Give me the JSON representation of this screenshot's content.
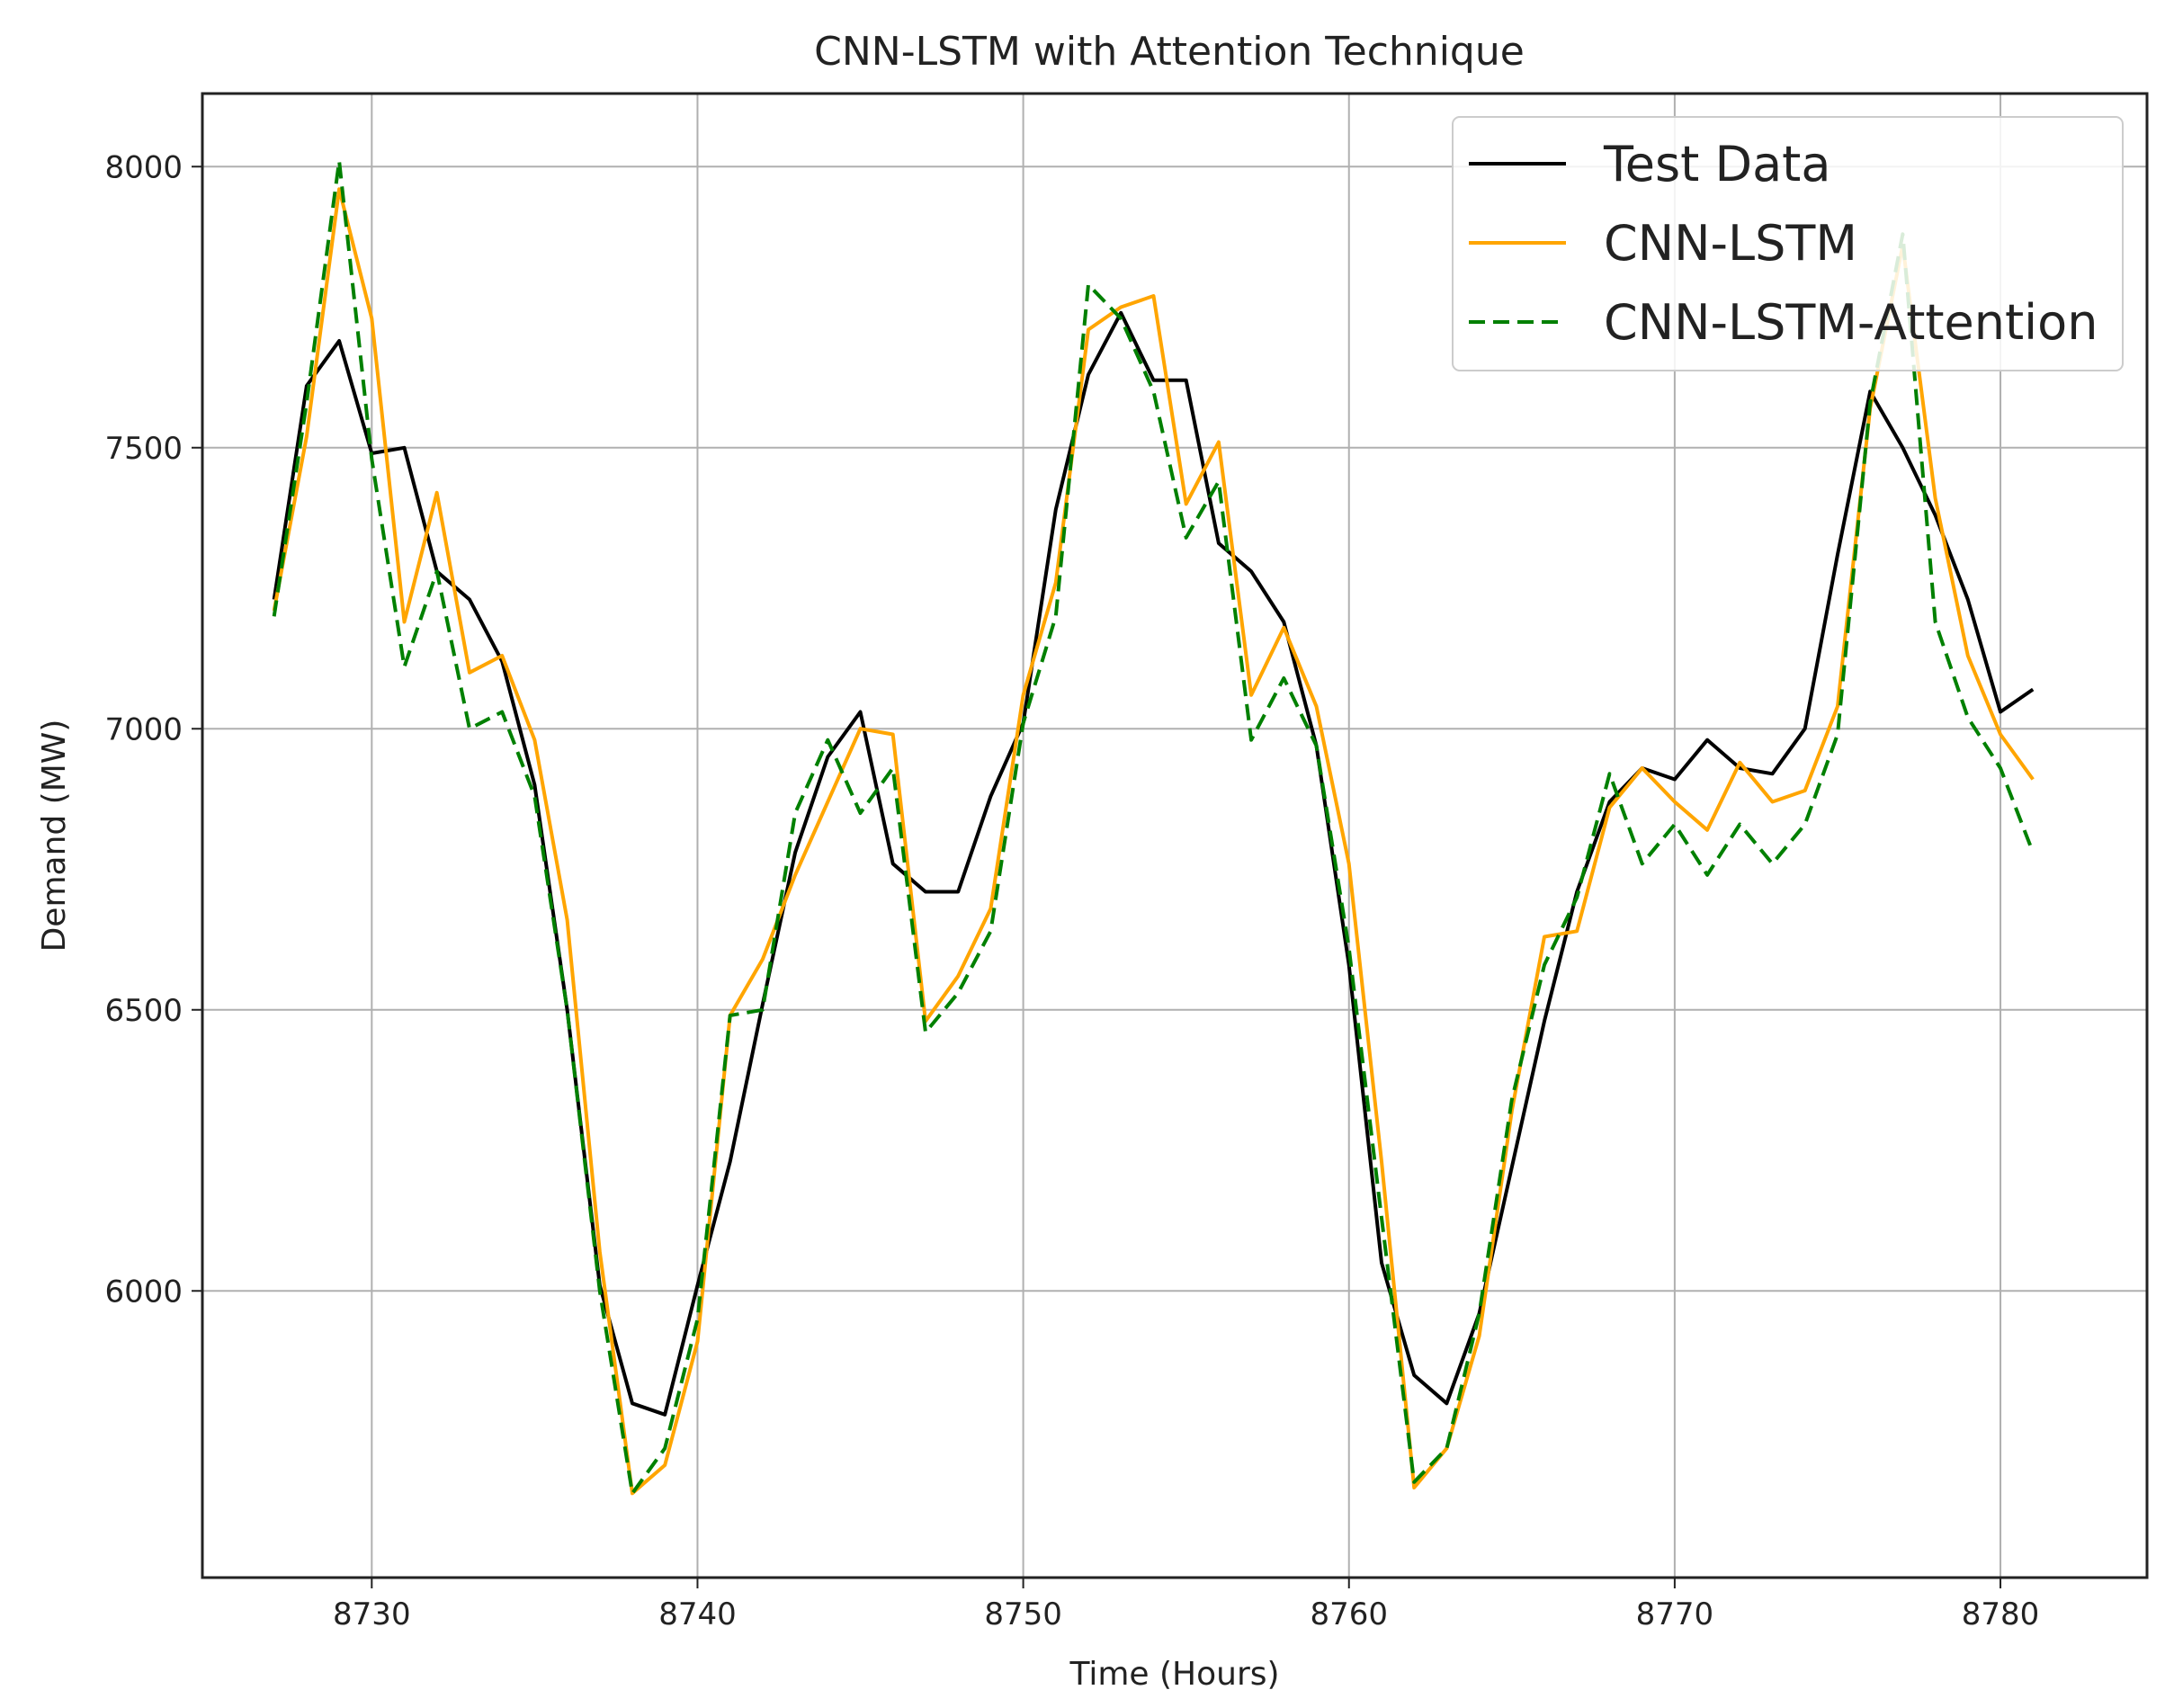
{
  "chart_data": {
    "type": "line",
    "title": "CNN-LSTM with Attention Technique",
    "xlabel": "Time (Hours)",
    "ylabel": "Demand (MW)",
    "xlim": [
      8724.8,
      8784.5
    ],
    "ylim": [
      5490,
      8130
    ],
    "xticks": [
      8730,
      8740,
      8750,
      8760,
      8770,
      8780
    ],
    "yticks": [
      6000,
      6500,
      7000,
      7500,
      8000
    ],
    "grid": true,
    "legend_position": "top-right",
    "x": [
      8727,
      8728,
      8729,
      8730,
      8731,
      8732,
      8733,
      8734,
      8735,
      8736,
      8737,
      8738,
      8739,
      8740,
      8741,
      8742,
      8743,
      8744,
      8745,
      8746,
      8747,
      8748,
      8749,
      8750,
      8751,
      8752,
      8753,
      8754,
      8755,
      8756,
      8757,
      8758,
      8759,
      8760,
      8761,
      8762,
      8763,
      8764,
      8765,
      8766,
      8767,
      8768,
      8769,
      8770,
      8771,
      8772,
      8773,
      8774,
      8775,
      8776,
      8777,
      8778,
      8779,
      8780,
      8781
    ],
    "series": [
      {
        "name": "Test Data",
        "color": "#000000",
        "dash": "solid",
        "values": [
          7230,
          7610,
          7690,
          7490,
          7500,
          7280,
          7230,
          7120,
          6900,
          6500,
          6010,
          5800,
          5780,
          6010,
          6230,
          6510,
          6780,
          6950,
          7030,
          6760,
          6710,
          6710,
          6880,
          7010,
          7390,
          7630,
          7740,
          7620,
          7620,
          7330,
          7280,
          7190,
          6970,
          6580,
          6050,
          5850,
          5800,
          5960,
          6220,
          6480,
          6710,
          6870,
          6930,
          6910,
          6980,
          6930,
          6920,
          7000,
          7310,
          7600,
          7500,
          7380,
          7230,
          7030,
          7070
        ]
      },
      {
        "name": "CNN-LSTM",
        "color": "#ffa500",
        "dash": "solid",
        "values": [
          7210,
          7520,
          7960,
          7730,
          7190,
          7420,
          7100,
          7130,
          6980,
          6660,
          6070,
          5640,
          5690,
          5910,
          6490,
          6590,
          6740,
          6870,
          7000,
          6990,
          6480,
          6560,
          6680,
          7060,
          7260,
          7710,
          7750,
          7770,
          7400,
          7510,
          7060,
          7180,
          7040,
          6760,
          6230,
          5650,
          5720,
          5920,
          6320,
          6630,
          6640,
          6860,
          6930,
          6870,
          6820,
          6940,
          6870,
          6890,
          7040,
          7570,
          7860,
          7410,
          7130,
          6990,
          6910
        ]
      },
      {
        "name": "CNN-LSTM-Attention",
        "color": "#008000",
        "dash": "dashed",
        "values": [
          7200,
          7580,
          8010,
          7480,
          7110,
          7280,
          7000,
          7030,
          6880,
          6500,
          6000,
          5640,
          5720,
          5950,
          6490,
          6500,
          6850,
          6980,
          6850,
          6930,
          6460,
          6530,
          6640,
          7010,
          7200,
          7790,
          7730,
          7600,
          7340,
          7440,
          6980,
          7090,
          6970,
          6610,
          6130,
          5660,
          5720,
          5960,
          6340,
          6580,
          6700,
          6920,
          6760,
          6830,
          6740,
          6830,
          6760,
          6830,
          6990,
          7580,
          7880,
          7190,
          7020,
          6930,
          6780
        ]
      }
    ]
  }
}
